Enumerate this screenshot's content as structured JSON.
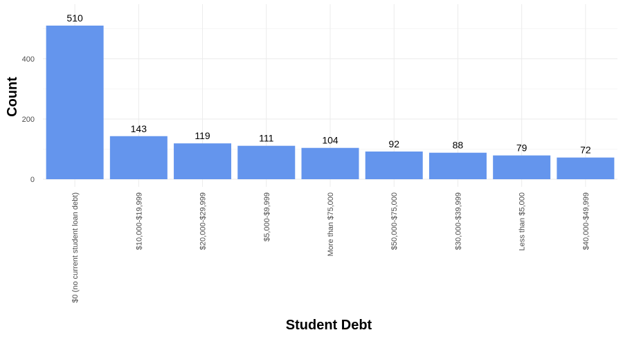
{
  "chart_data": {
    "type": "bar",
    "title": "",
    "xlabel": "Student Debt",
    "ylabel": "Count",
    "categories": [
      "$0 (no current student loan debt)",
      "$10,000-$19,999",
      "$20,000-$29,999",
      "$5,000-$9,999",
      "More than $75,000",
      "$50,000-$75,000",
      "$30,000-$39,999",
      "Less than $5,000",
      "$40,000-$49,999"
    ],
    "values": [
      510,
      143,
      119,
      111,
      104,
      92,
      88,
      79,
      72
    ],
    "ylim": [
      0,
      570
    ],
    "yticks": [
      0,
      200,
      400
    ],
    "grid": true,
    "legend": "none",
    "bar_color": "#6495ED"
  }
}
